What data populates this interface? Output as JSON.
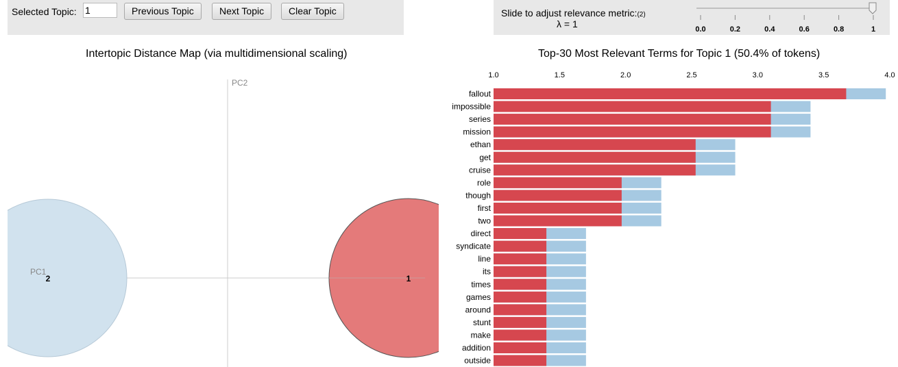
{
  "controls": {
    "selected_topic_label": "Selected Topic:",
    "selected_topic_value": "1",
    "previous_label": "Previous Topic",
    "next_label": "Next Topic",
    "clear_label": "Clear Topic"
  },
  "slider": {
    "label": "Slide to adjust relevance metric:",
    "footnote": "(2)",
    "lambda_text": "λ = 1",
    "value": 1,
    "ticks": [
      "0.0",
      "0.2",
      "0.4",
      "0.6",
      "0.8",
      "1"
    ]
  },
  "map": {
    "title": "Intertopic Distance Map (via multidimensional scaling)",
    "pc1_label": "PC1",
    "pc2_label": "PC2",
    "topics": [
      {
        "label": "1",
        "selected": true
      },
      {
        "label": "2",
        "selected": false
      }
    ]
  },
  "bars": {
    "title": "Top-30 Most Relevant Terms for Topic 1 (50.4% of tokens)",
    "colors": {
      "estimated": "#d6474f",
      "overall": "#a6c9e2"
    }
  },
  "chart_data": {
    "type": "bar",
    "orientation": "horizontal",
    "xlim": [
      1.0,
      4.0
    ],
    "xticks": [
      "1.0",
      "1.5",
      "2.0",
      "2.5",
      "3.0",
      "3.5",
      "4.0"
    ],
    "categories": [
      "fallout",
      "impossible",
      "series",
      "mission",
      "ethan",
      "get",
      "cruise",
      "role",
      "though",
      "first",
      "two",
      "direct",
      "syndicate",
      "line",
      "its",
      "times",
      "games",
      "around",
      "stunt",
      "make",
      "addition",
      "outside"
    ],
    "series": [
      {
        "name": "estimated",
        "values": [
          3.67,
          3.1,
          3.1,
          3.1,
          2.53,
          2.53,
          2.53,
          1.97,
          1.97,
          1.97,
          1.97,
          1.4,
          1.4,
          1.4,
          1.4,
          1.4,
          1.4,
          1.4,
          1.4,
          1.4,
          1.4,
          1.4
        ]
      },
      {
        "name": "overall",
        "values": [
          3.97,
          3.4,
          3.4,
          3.4,
          2.83,
          2.83,
          2.83,
          2.27,
          2.27,
          2.27,
          2.27,
          1.7,
          1.7,
          1.7,
          1.7,
          1.7,
          1.7,
          1.7,
          1.7,
          1.7,
          1.7,
          1.7
        ]
      }
    ]
  }
}
